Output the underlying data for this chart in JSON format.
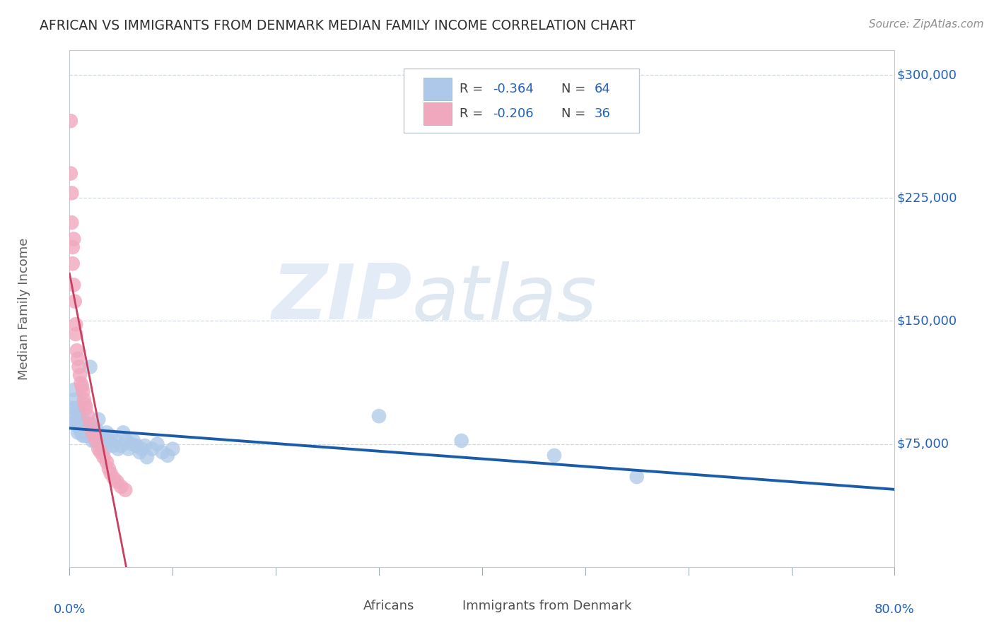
{
  "title": "AFRICAN VS IMMIGRANTS FROM DENMARK MEDIAN FAMILY INCOME CORRELATION CHART",
  "source": "Source: ZipAtlas.com",
  "ylabel": "Median Family Income",
  "watermark_zip": "ZIP",
  "watermark_atlas": "atlas",
  "legend_r1": "R = -0.364",
  "legend_n1": "N = 64",
  "legend_r2": "R = -0.206",
  "legend_n2": "N = 36",
  "blue_color": "#adc8e8",
  "pink_color": "#f0a8be",
  "blue_line_color": "#1a5ca8",
  "pink_line_color": "#c84060",
  "pink_dash_color": "#d8a0b0",
  "label_color": "#2060c0",
  "grid_color": "#d0d8e0",
  "title_color": "#303030",
  "source_color": "#909090",
  "ylabel_color": "#606060",
  "bottom_label_color": "#505050",
  "africans_x": [
    0.002,
    0.004,
    0.004,
    0.005,
    0.005,
    0.006,
    0.006,
    0.007,
    0.007,
    0.008,
    0.008,
    0.009,
    0.009,
    0.01,
    0.01,
    0.01,
    0.011,
    0.011,
    0.012,
    0.013,
    0.013,
    0.014,
    0.015,
    0.016,
    0.017,
    0.018,
    0.019,
    0.02,
    0.021,
    0.022,
    0.024,
    0.025,
    0.026,
    0.028,
    0.029,
    0.031,
    0.032,
    0.034,
    0.036,
    0.038,
    0.04,
    0.042,
    0.045,
    0.047,
    0.05,
    0.052,
    0.055,
    0.057,
    0.06,
    0.062,
    0.065,
    0.068,
    0.07,
    0.073,
    0.075,
    0.08,
    0.085,
    0.09,
    0.095,
    0.1,
    0.3,
    0.38,
    0.47,
    0.55
  ],
  "africans_y": [
    97000,
    108000,
    88000,
    93000,
    102000,
    87000,
    97000,
    90000,
    95000,
    82000,
    89000,
    85000,
    92000,
    87000,
    90000,
    95000,
    82000,
    87000,
    84000,
    80000,
    90000,
    85000,
    80000,
    87000,
    82000,
    84000,
    80000,
    122000,
    87000,
    77000,
    82000,
    77000,
    84000,
    90000,
    74000,
    80000,
    77000,
    72000,
    82000,
    77000,
    80000,
    74000,
    77000,
    72000,
    74000,
    82000,
    77000,
    72000,
    75000,
    77000,
    74000,
    70000,
    72000,
    74000,
    67000,
    72000,
    75000,
    70000,
    68000,
    72000,
    92000,
    77000,
    68000,
    55000
  ],
  "denmark_x": [
    0.001,
    0.001,
    0.002,
    0.002,
    0.003,
    0.003,
    0.004,
    0.004,
    0.005,
    0.006,
    0.006,
    0.007,
    0.008,
    0.009,
    0.01,
    0.011,
    0.012,
    0.013,
    0.014,
    0.015,
    0.016,
    0.018,
    0.02,
    0.022,
    0.024,
    0.026,
    0.028,
    0.03,
    0.033,
    0.036,
    0.038,
    0.04,
    0.043,
    0.046,
    0.05,
    0.054
  ],
  "denmark_y": [
    272000,
    240000,
    228000,
    210000,
    195000,
    185000,
    200000,
    172000,
    162000,
    148000,
    142000,
    132000,
    127000,
    122000,
    117000,
    112000,
    110000,
    107000,
    102000,
    99000,
    97000,
    92000,
    87000,
    82000,
    80000,
    77000,
    72000,
    70000,
    67000,
    64000,
    60000,
    57000,
    54000,
    52000,
    49000,
    47000
  ],
  "xlim": [
    0.0,
    0.8
  ],
  "ylim": [
    0,
    315000
  ],
  "yticks": [
    0,
    75000,
    150000,
    225000,
    300000
  ],
  "ytick_labels": [
    "",
    "$75,000",
    "$150,000",
    "$225,000",
    "$300,000"
  ],
  "xtick_positions": [
    0.0,
    0.1,
    0.2,
    0.3,
    0.4,
    0.5,
    0.6,
    0.7,
    0.8
  ]
}
